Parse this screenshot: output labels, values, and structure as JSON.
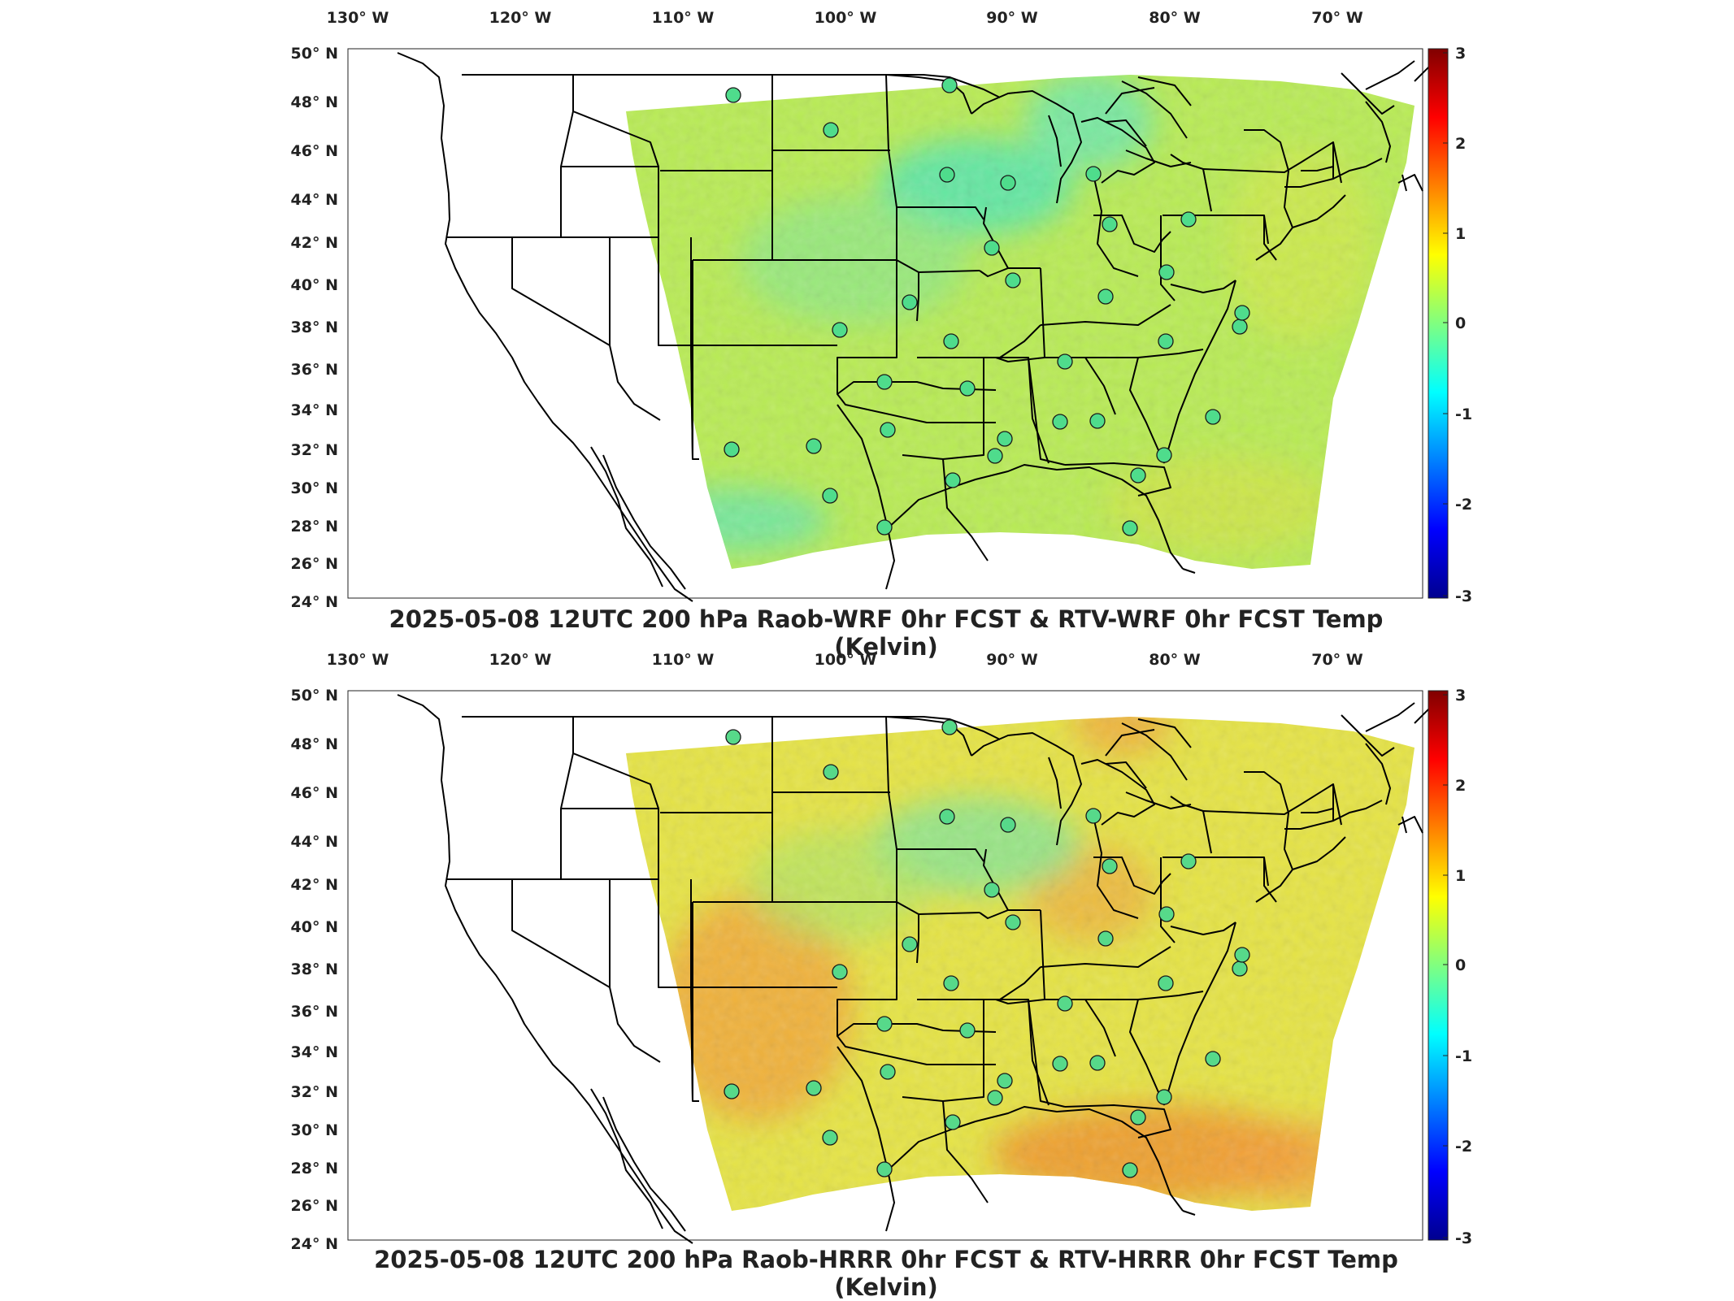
{
  "panels": [
    {
      "id": "wrf",
      "title": "2025-05-08 12UTC 200 hPa Raob-WRF 0hr FCST & RTV-WRF 0hr FCST Temp (Kelvin)",
      "colorbar": {
        "min": -3,
        "max": 3,
        "ticks": [
          "3",
          "2",
          "1",
          "0",
          "-1",
          "-2",
          "-3"
        ]
      },
      "field_tint": "#b9ec55",
      "warm_regions": [],
      "station_color": "#4fdc8c"
    },
    {
      "id": "hrrr",
      "title": "2025-05-08 12UTC 200 hPa Raob-HRRR 0hr FCST & RTV-HRRR 0hr FCST Temp (Kelvin)",
      "colorbar": {
        "min": -3,
        "max": 3,
        "ticks": [
          "3",
          "2",
          "1",
          "0",
          "-1",
          "-2",
          "-3"
        ]
      },
      "field_tint": "#e6e445",
      "warm_regions": [
        "southwest",
        "gulf-coast",
        "florida",
        "atlantic"
      ],
      "station_color": "#57d98a"
    }
  ],
  "axes": {
    "lon_labels": [
      "130° W",
      "120° W",
      "110° W",
      "100° W",
      "90° W",
      "80° W",
      "70° W"
    ],
    "lat_labels": [
      "50° N",
      "48° N",
      "46° N",
      "44° N",
      "42° N",
      "40° N",
      "38° N",
      "36° N",
      "34° N",
      "32° N",
      "30° N",
      "28° N",
      "26° N",
      "24° N"
    ]
  },
  "colors": {
    "jet": [
      "#00008f",
      "#0000ff",
      "#0080ff",
      "#00ffff",
      "#80ff80",
      "#ffff00",
      "#ff8000",
      "#ff0000",
      "#800000"
    ],
    "border": "#000000"
  }
}
